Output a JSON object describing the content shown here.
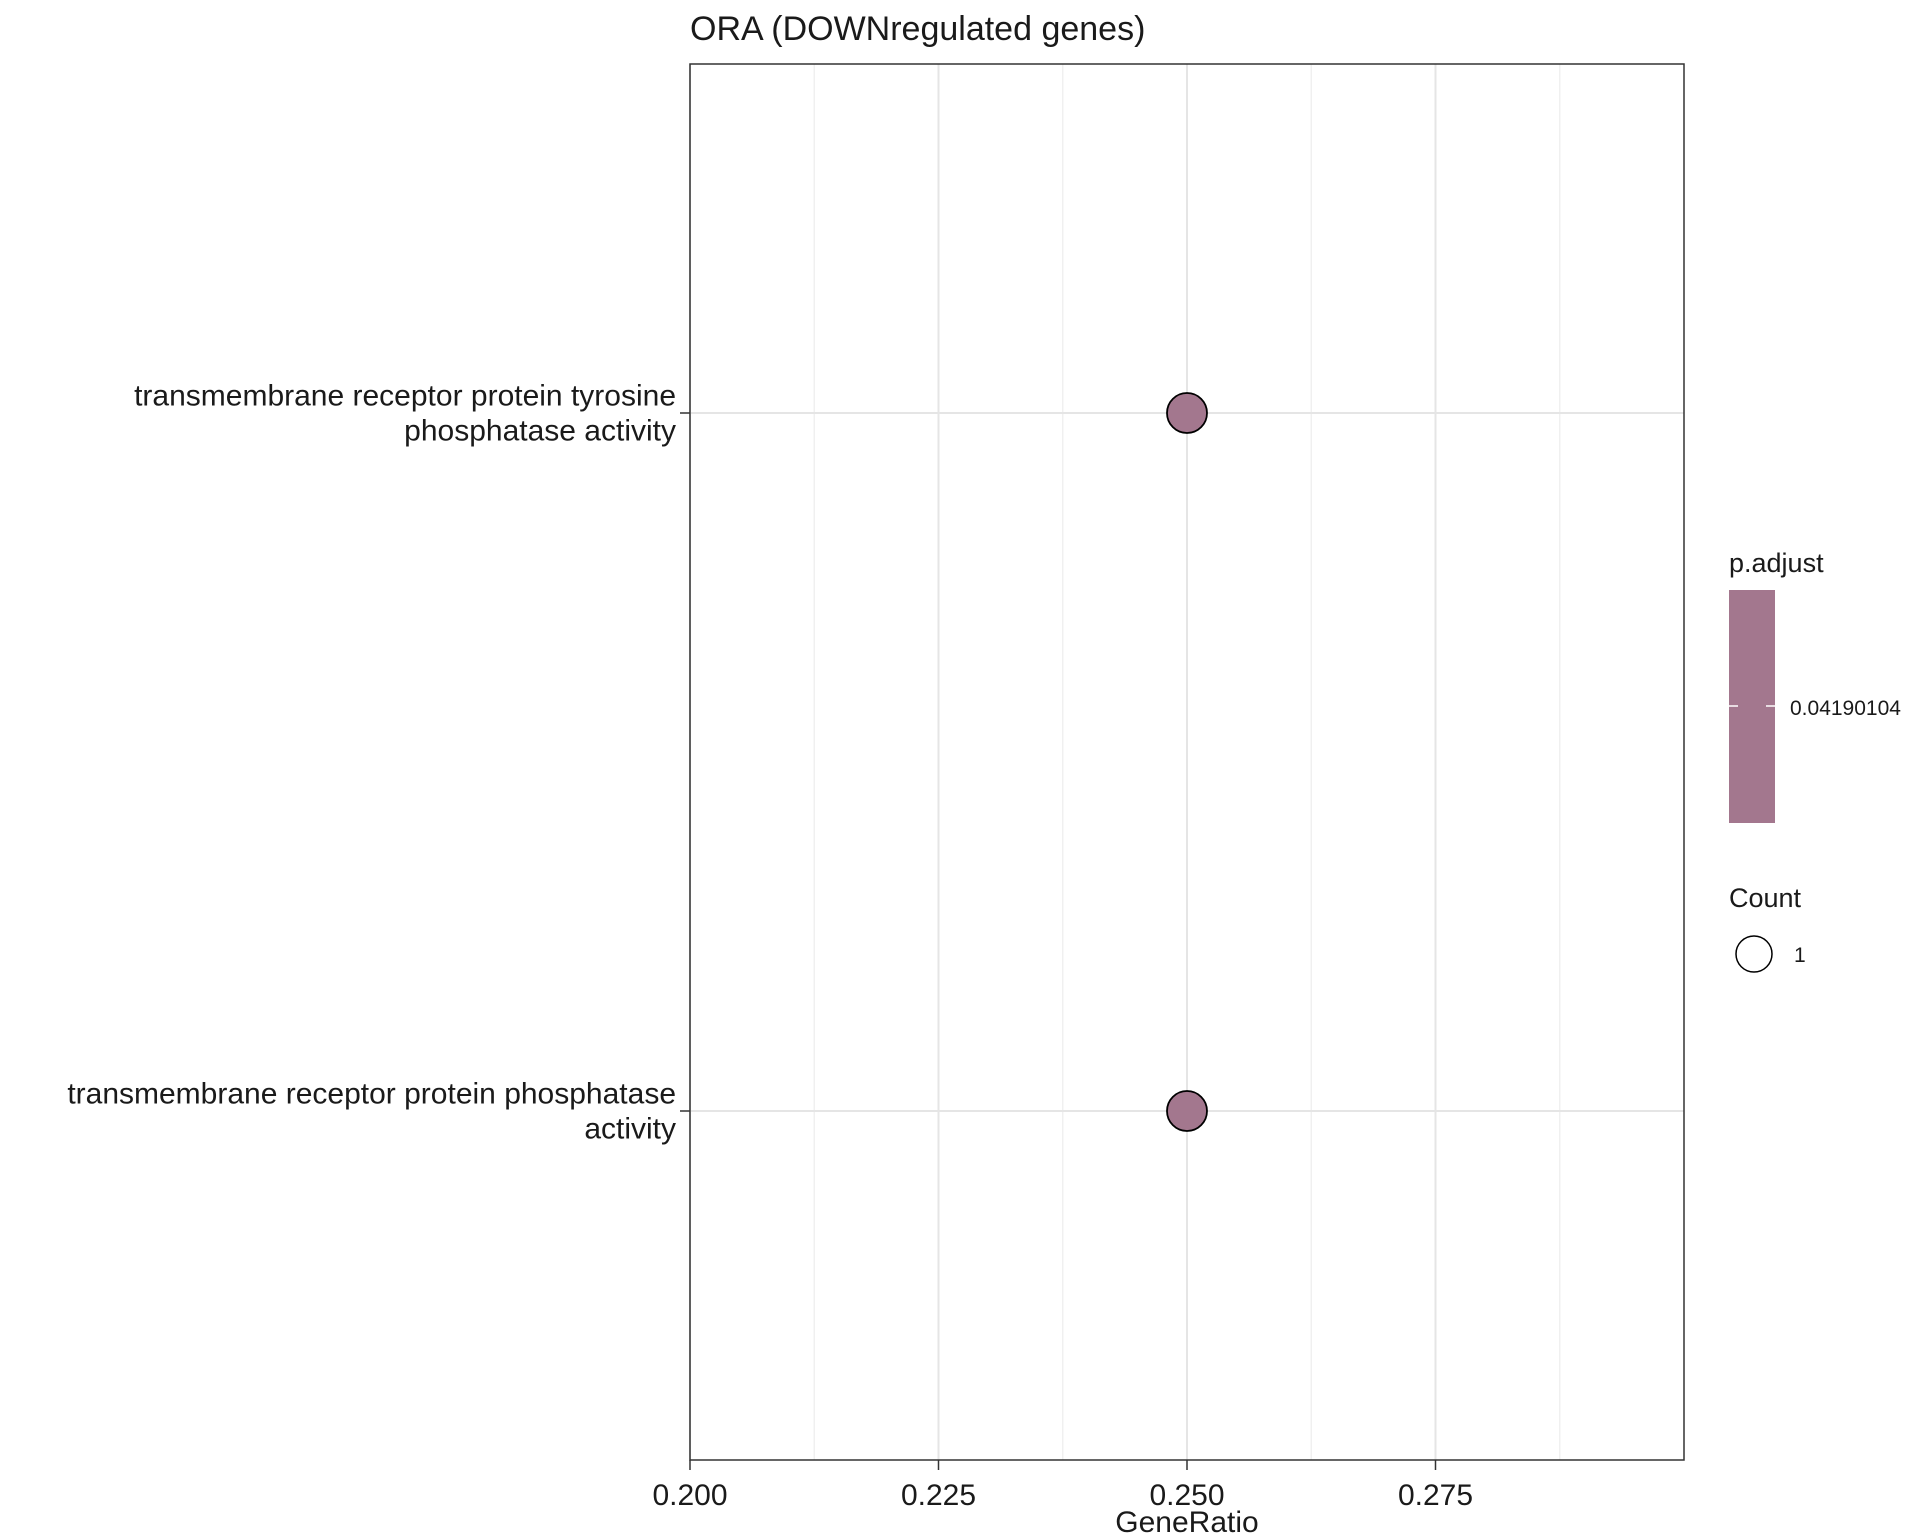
{
  "chart_data": {
    "type": "scatter",
    "title": "ORA (DOWNregulated genes)",
    "xlabel": "GeneRatio",
    "ylabel": "",
    "xlim": [
      0.2,
      0.3
    ],
    "x_ticks": [
      "0.200",
      "0.225",
      "0.250",
      "0.275"
    ],
    "x_tick_values": [
      0.2,
      0.225,
      0.25,
      0.275
    ],
    "x_minor_values": [
      0.2125,
      0.2375,
      0.2625,
      0.2875
    ],
    "grid": true,
    "categories": [
      [
        "transmembrane receptor protein tyrosine",
        "phosphatase activity"
      ],
      [
        "transmembrane receptor protein phosphatase",
        "activity"
      ]
    ],
    "points": [
      {
        "category_index": 0,
        "x": 0.25,
        "count": 1,
        "p_adjust": 0.04190104
      },
      {
        "category_index": 1,
        "x": 0.25,
        "count": 1,
        "p_adjust": 0.04190104
      }
    ],
    "legend": {
      "placement": "right",
      "color_title": "p.adjust",
      "color_label": "0.04190104",
      "color": "#a3778e",
      "size_title": "Count",
      "size_label": "1"
    }
  }
}
